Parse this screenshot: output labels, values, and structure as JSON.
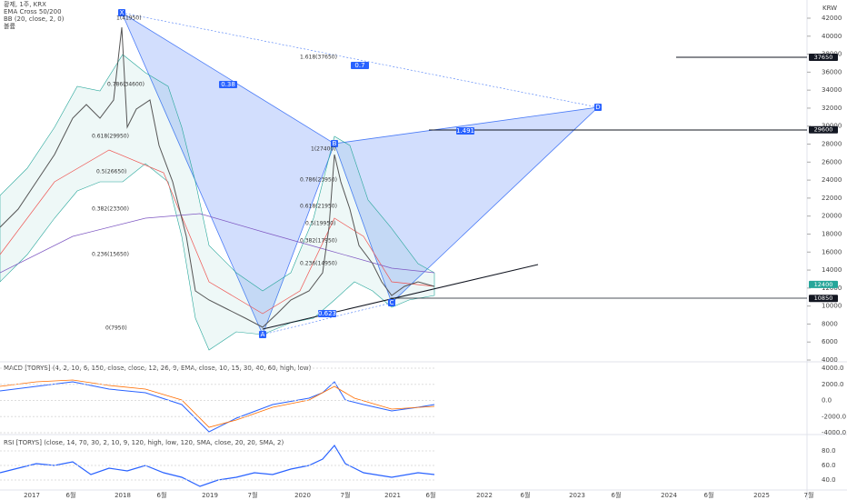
{
  "header": {
    "symbol": "황제, 1주, KRX",
    "indicators": [
      "EMA Cross 50/200",
      "BB (20, close, 2, 0)",
      "볼륨"
    ]
  },
  "price_axis": {
    "unit": "KRW",
    "ylim": [
      3800,
      44020
    ],
    "ticks": [
      4000,
      6000,
      8000,
      10000,
      12000,
      14000,
      16000,
      18000,
      20000,
      22000,
      24000,
      26000,
      28000,
      30000,
      32000,
      34000,
      36000,
      38000,
      40000,
      42000
    ]
  },
  "price_tags": [
    {
      "value": 37650,
      "color": "#131722"
    },
    {
      "value": 29600,
      "color": "#131722"
    },
    {
      "value": 12400,
      "color": "#26a69a"
    },
    {
      "value": 10850,
      "color": "#131722"
    }
  ],
  "time_axis": [
    "2017",
    "6월",
    "2018",
    "6월",
    "2019",
    "7월",
    "2020",
    "7월",
    "2021",
    "6월",
    "2022",
    "6월",
    "2023",
    "6월",
    "2024",
    "6월",
    "2025",
    "7월"
  ],
  "pattern": {
    "points": [
      "X",
      "A",
      "B",
      "C",
      "D"
    ],
    "ratios": [
      "0.38",
      "0.7",
      "0.623",
      "1.491"
    ]
  },
  "fib_labels": [
    "1(41950)",
    "0.786(34600)",
    "0.618(29950)",
    "0.5(26650)",
    "0.382(23300)",
    "0.236(15650)",
    "0(7950)",
    "1.618(37650)",
    "1(27400)",
    "0.786(23950)",
    "0.618(21950)",
    "0.5(19950)",
    "0.382(17950)",
    "0.236(14950)"
  ],
  "panes": {
    "macd": {
      "label": "MACD [TORYS] (4, 2, 10, 6, 150, close, close, 12, 26, 9, EMA, close, 10, 15, 30, 40, 60, high, low)",
      "ylim": [
        -4225,
        4789
      ],
      "ticks": [
        {
          "value": 4000,
          "label": "4000.0"
        },
        {
          "value": 2000,
          "label": "2000.0"
        },
        {
          "value": 0,
          "label": "0.0"
        },
        {
          "value": -2000,
          "label": "-2000.0"
        },
        {
          "value": -4000,
          "label": "-4000.0"
        }
      ]
    },
    "rsi": {
      "label": "RSI [TORYS] (close, 14, 70, 30, 2, 10, 9, 120, high, low, 120, SMA, close, 20, 20, SMA, 2)",
      "ylim": [
        25,
        100
      ],
      "ticks": [
        {
          "value": 80,
          "label": "80.0"
        },
        {
          "value": 60,
          "label": "60.0"
        },
        {
          "value": 40,
          "label": "40.0"
        }
      ]
    }
  }
}
